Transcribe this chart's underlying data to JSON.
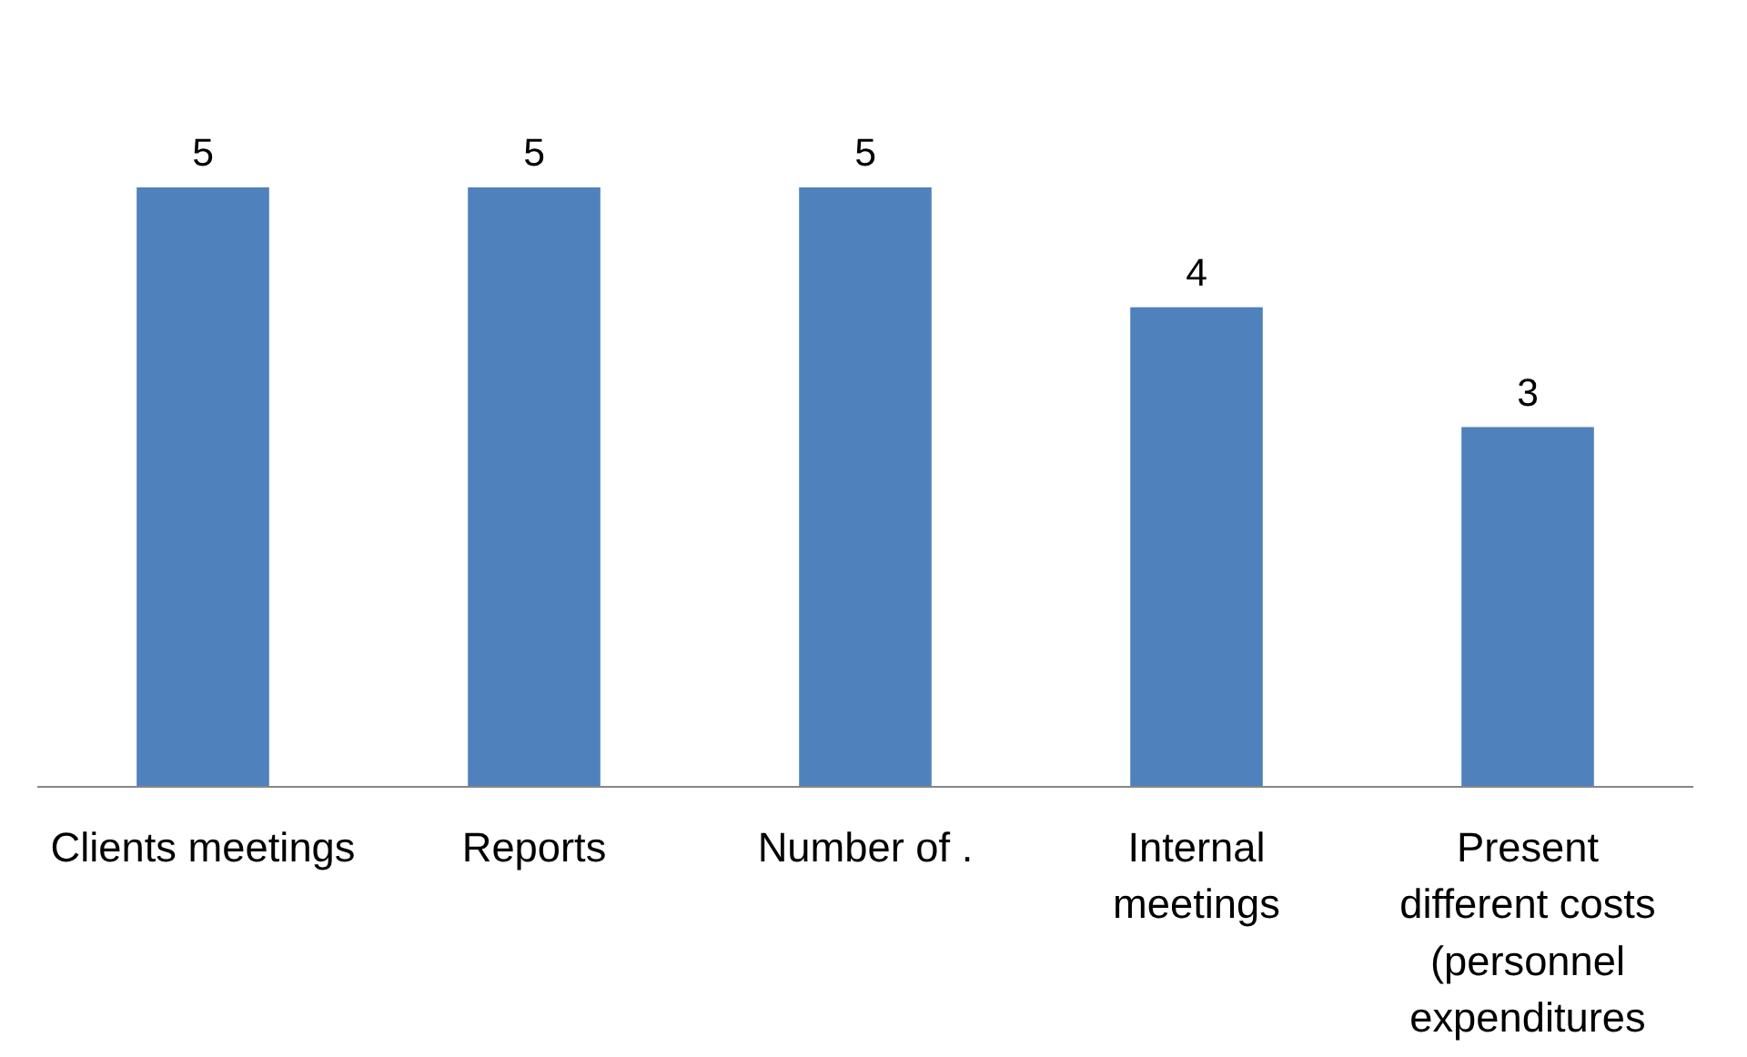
{
  "chart_data": {
    "type": "bar",
    "categories": [
      "Clients meetings",
      "Reports",
      "Number of .",
      "Internal meetings",
      "Present different costs (personnel expenditures"
    ],
    "values": [
      5,
      5,
      5,
      4,
      3
    ],
    "color": "#4f81bd",
    "data_labels": true
  }
}
